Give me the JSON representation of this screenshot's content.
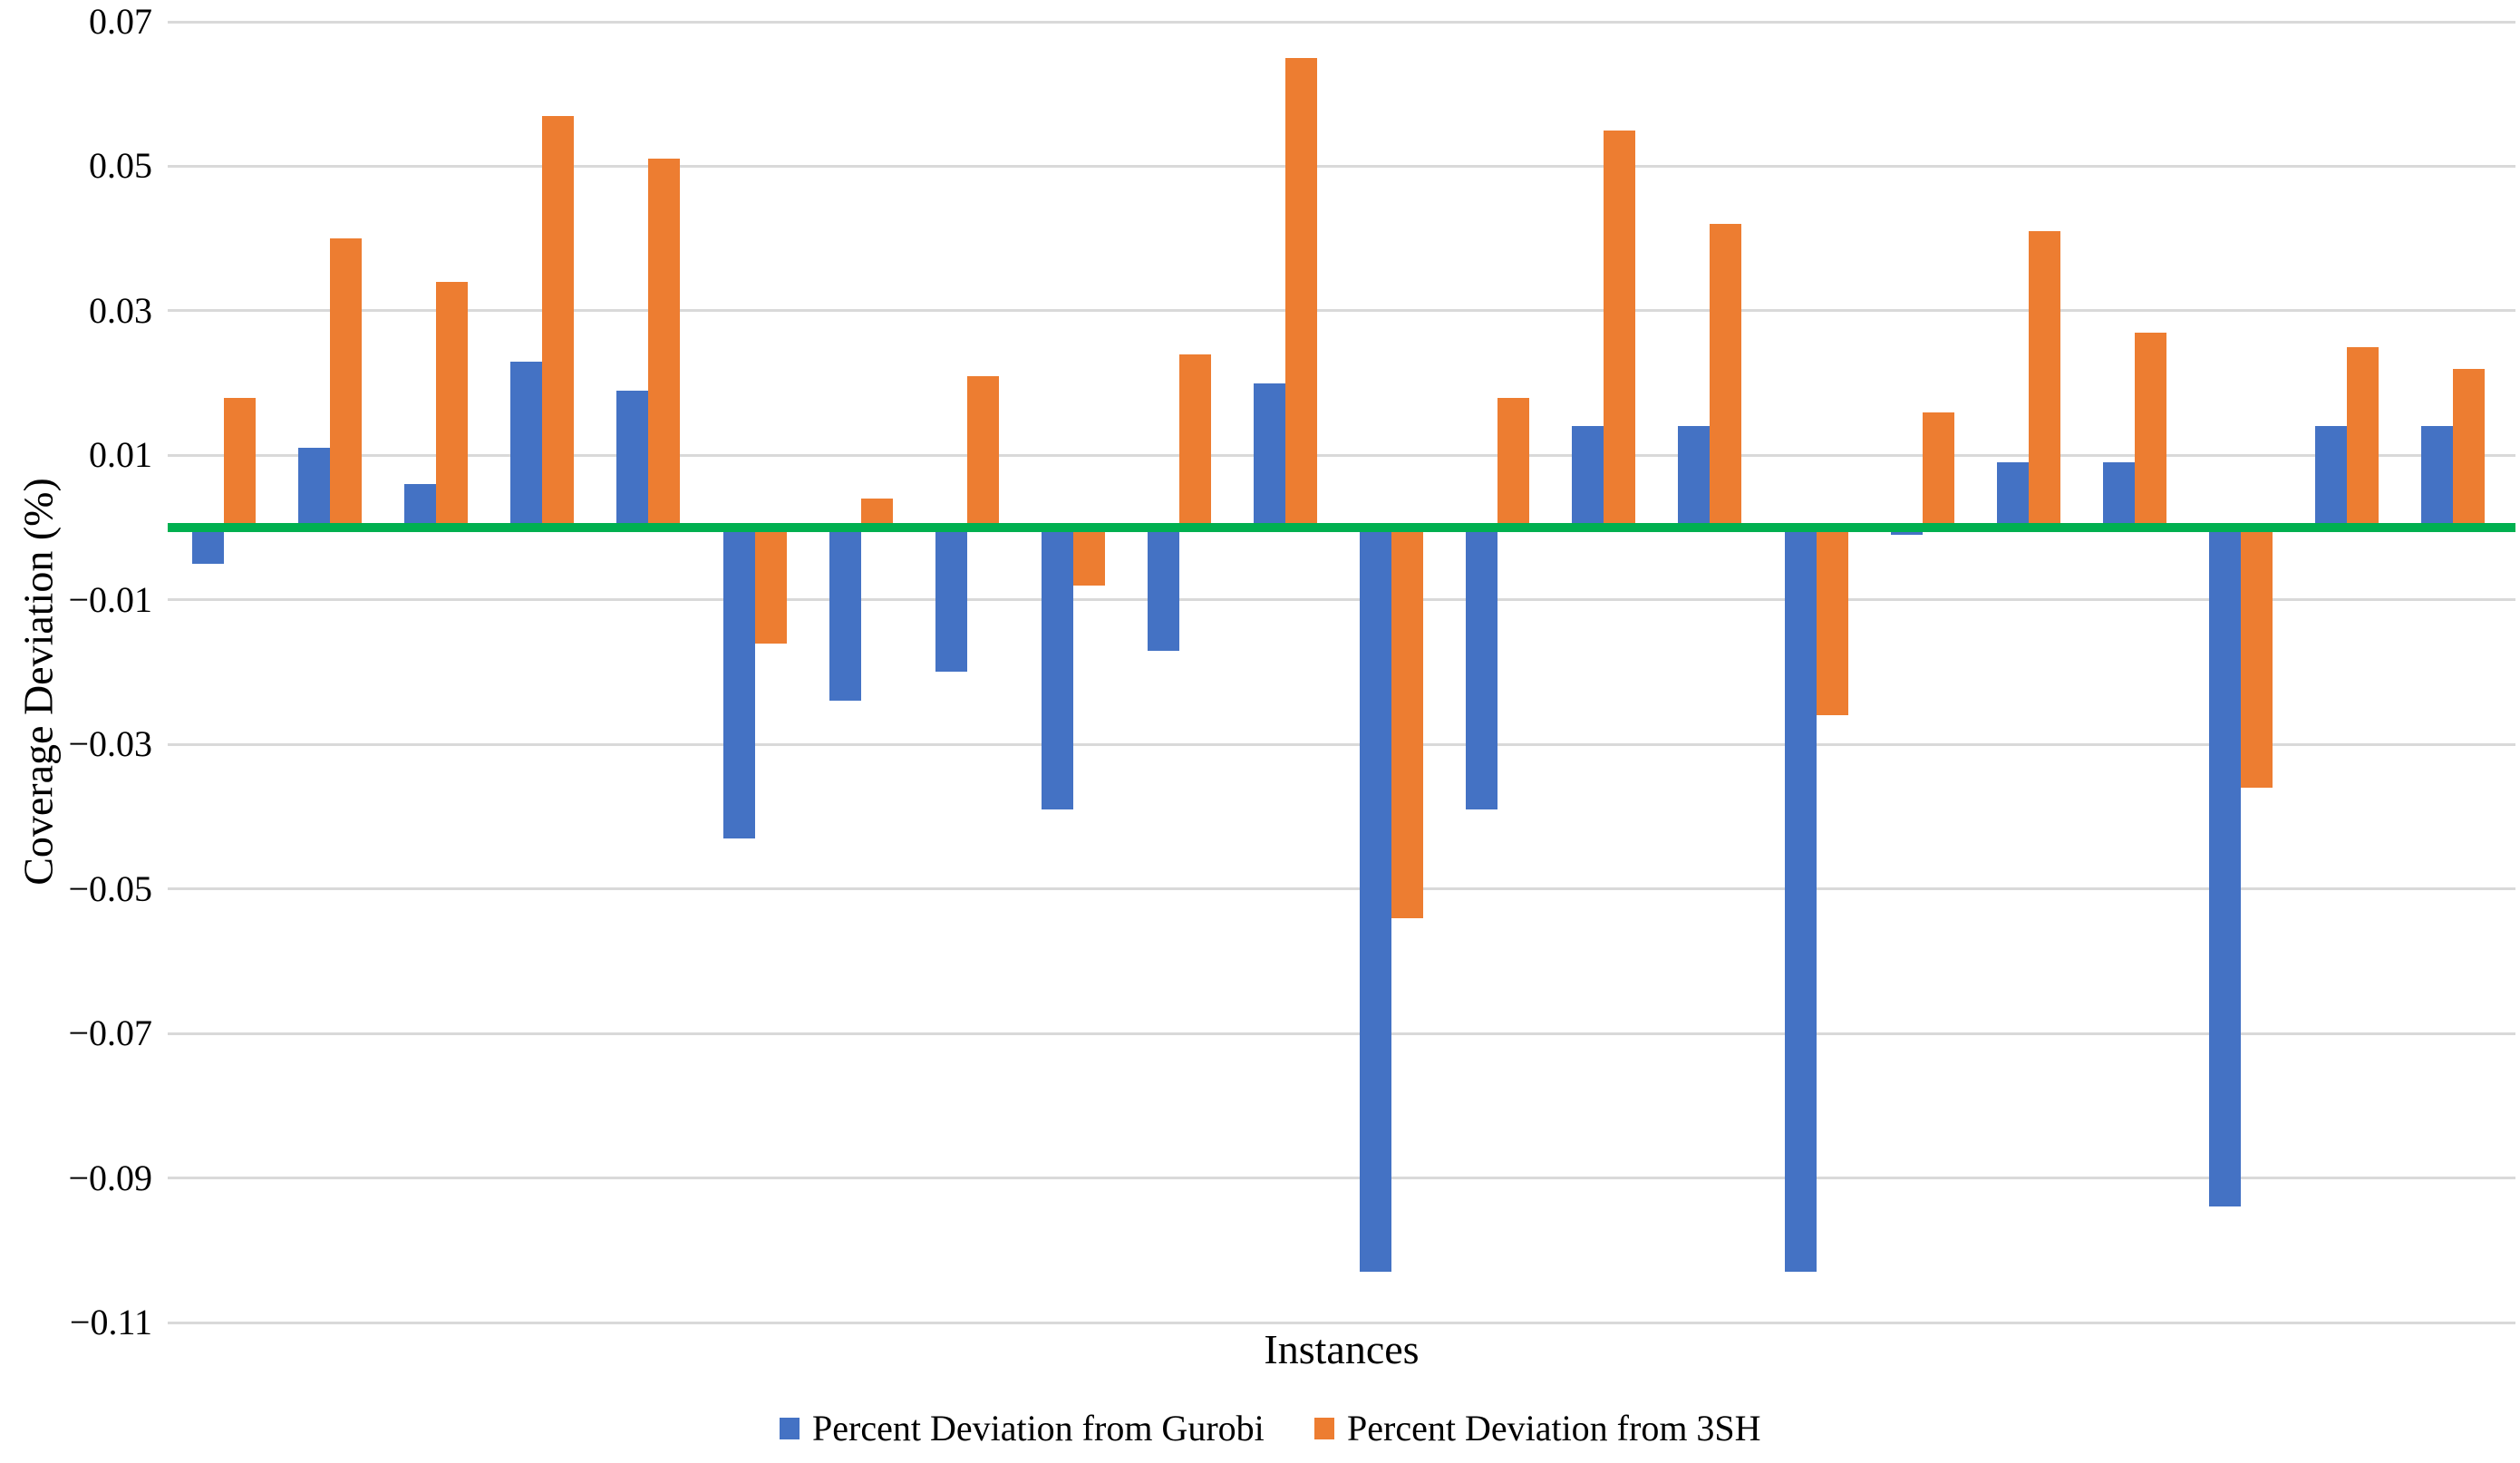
{
  "labels": {
    "x_axis": "Instances",
    "y_axis": "Coverage Deviation (%)"
  },
  "legend": {
    "items": [
      {
        "label": "Percent Deviation from Gurobi",
        "color": "#4472c4"
      },
      {
        "label": "Percent Deviation from 3SH",
        "color": "#ed7d31"
      }
    ]
  },
  "chart_data": {
    "type": "bar",
    "title": "",
    "xlabel": "Instances",
    "ylabel": "Coverage Deviation (%)",
    "n_instances": 22,
    "series": [
      {
        "name": "Percent Deviation from Gurobi",
        "color": "#4472c4",
        "values": [
          -0.005,
          0.011,
          0.006,
          0.023,
          0.019,
          -0.043,
          -0.024,
          -0.02,
          -0.039,
          -0.017,
          0.02,
          -0.103,
          -0.039,
          0.014,
          0.014,
          -0.103,
          -0.001,
          0.009,
          0.009,
          -0.094,
          0.014,
          0.014
        ]
      },
      {
        "name": "Percent Deviation from 3SH",
        "color": "#ed7d31",
        "values": [
          0.018,
          0.04,
          0.034,
          0.057,
          0.051,
          -0.016,
          0.004,
          0.021,
          -0.008,
          0.024,
          0.065,
          -0.054,
          0.018,
          0.055,
          0.042,
          -0.026,
          0.016,
          0.041,
          0.027,
          -0.036,
          0.025,
          0.022
        ]
      }
    ],
    "y_ticks": [
      0.07,
      0.05,
      0.03,
      0.01,
      -0.01,
      -0.03,
      -0.05,
      -0.07,
      -0.09,
      -0.11
    ],
    "ylim": [
      -0.11,
      0.07
    ],
    "grid": true,
    "gridline_color": "#d9d9d9",
    "zero_line_color": "#00b050",
    "background_color": "#ffffff",
    "legend_position": "bottom"
  }
}
